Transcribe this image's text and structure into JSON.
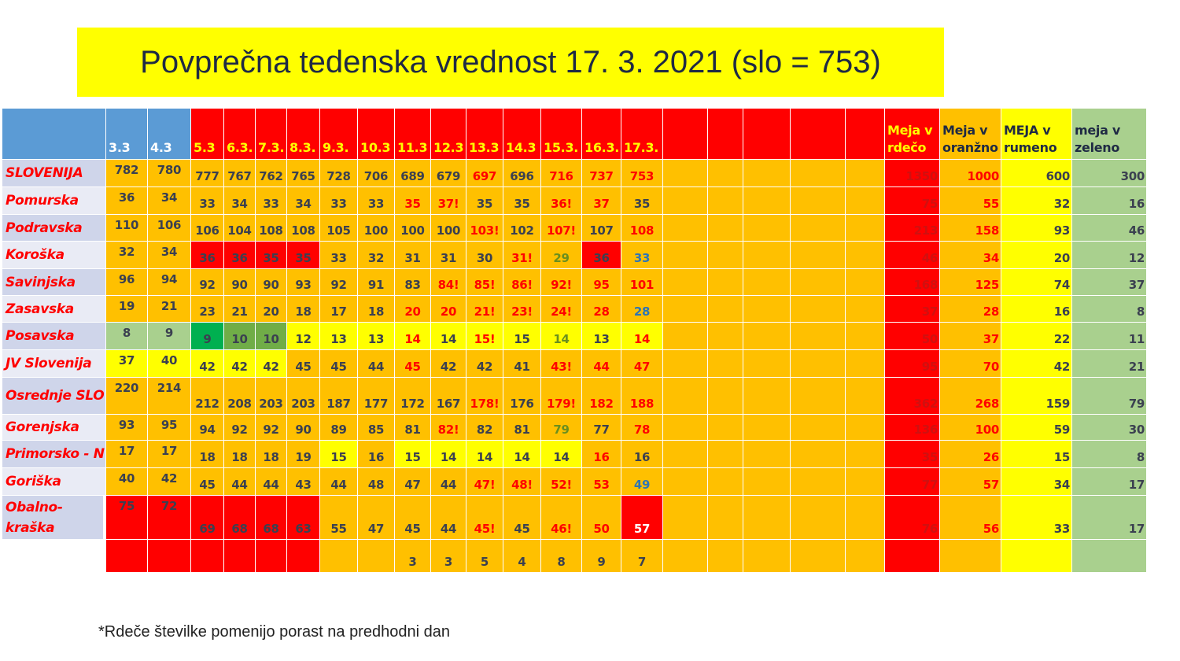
{
  "title": "Povprečna tedenska vrednost 17. 3. 2021 (slo = 753)",
  "table": {
    "header": {
      "dates": [
        "3.3",
        "4.3",
        "5.3",
        "6.3.",
        "7.3.",
        "8.3.",
        "9.3.",
        "10.3",
        "11.3",
        "12.3",
        "13.3",
        "14.3",
        "15.3.",
        "16.3.",
        "17.3."
      ],
      "limits": [
        "Meja v rdečo",
        "Meja v oranžno",
        "MEJA v rumeno",
        "meja v zeleno"
      ]
    },
    "rows": [
      {
        "label": "SLOVENIJA",
        "values": [
          782,
          780,
          777,
          767,
          762,
          765,
          728,
          706,
          689,
          679,
          697,
          696,
          716,
          737,
          753
        ],
        "limits": [
          1350,
          1000,
          600,
          300
        ]
      },
      {
        "label": "Pomurska",
        "values": [
          36,
          34,
          33,
          34,
          33,
          34,
          33,
          33,
          35,
          "37!",
          35,
          35,
          "36!",
          37,
          35
        ],
        "limits": [
          75,
          55,
          32,
          16
        ]
      },
      {
        "label": "Podravska",
        "values": [
          110,
          106,
          106,
          104,
          108,
          108,
          105,
          100,
          100,
          100,
          "103!",
          102,
          "107!",
          107,
          108
        ],
        "limits": [
          213,
          158,
          93,
          46
        ]
      },
      {
        "label": "Koroška",
        "values": [
          32,
          34,
          36,
          36,
          35,
          35,
          33,
          32,
          31,
          31,
          30,
          "31!",
          29,
          36,
          33
        ],
        "limits": [
          46,
          34,
          20,
          12
        ]
      },
      {
        "label": "Savinjska",
        "values": [
          96,
          94,
          92,
          90,
          90,
          93,
          92,
          91,
          83,
          "84!",
          "85!",
          "86!",
          "92!",
          95,
          101
        ],
        "limits": [
          168,
          125,
          74,
          37
        ]
      },
      {
        "label": "Zasavska",
        "values": [
          19,
          21,
          23,
          21,
          20,
          18,
          17,
          18,
          20,
          20,
          "21!",
          "23!",
          "24!",
          28,
          28
        ],
        "limits": [
          37,
          28,
          16,
          8
        ]
      },
      {
        "label": "Posavska",
        "values": [
          8,
          9,
          9,
          10,
          10,
          12,
          13,
          13,
          14,
          14,
          "15!",
          15,
          14,
          13,
          14
        ],
        "limits": [
          50,
          37,
          22,
          11
        ]
      },
      {
        "label": "JV Slovenija",
        "values": [
          37,
          40,
          42,
          42,
          42,
          45,
          45,
          44,
          45,
          42,
          42,
          41,
          "43!",
          44,
          47
        ],
        "limits": [
          95,
          70,
          42,
          21
        ]
      },
      {
        "label": "Osrednje SLO",
        "values": [
          220,
          214,
          212,
          208,
          203,
          203,
          187,
          177,
          172,
          167,
          "178!",
          176,
          "179!",
          182,
          188
        ],
        "limits": [
          362,
          268,
          159,
          79
        ]
      },
      {
        "label": "Gorenjska",
        "values": [
          93,
          95,
          94,
          92,
          92,
          90,
          89,
          85,
          81,
          "82!",
          82,
          81,
          79,
          77,
          78
        ],
        "limits": [
          136,
          100,
          59,
          30
        ]
      },
      {
        "label": "Primorsko - N",
        "values": [
          17,
          17,
          18,
          18,
          18,
          19,
          15,
          16,
          15,
          14,
          14,
          14,
          14,
          16,
          16
        ],
        "limits": [
          35,
          26,
          15,
          8
        ]
      },
      {
        "label": "Goriška",
        "values": [
          40,
          42,
          45,
          44,
          44,
          43,
          44,
          48,
          47,
          44,
          "47!",
          "48!",
          "52!",
          53,
          49
        ],
        "limits": [
          77,
          57,
          34,
          17
        ]
      },
      {
        "label": "Obalno-kraška",
        "values": [
          75,
          72,
          69,
          68,
          68,
          63,
          55,
          47,
          45,
          44,
          "45!",
          45,
          "46!",
          50,
          57
        ],
        "limits": [
          76,
          56,
          33,
          17
        ]
      }
    ],
    "extra_row": {
      "values": [
        null,
        null,
        null,
        null,
        null,
        null,
        null,
        null,
        3,
        3,
        5,
        4,
        8,
        9,
        7
      ]
    }
  },
  "footnote": "*Rdeče številke pomenijo porast na predhodni dan"
}
